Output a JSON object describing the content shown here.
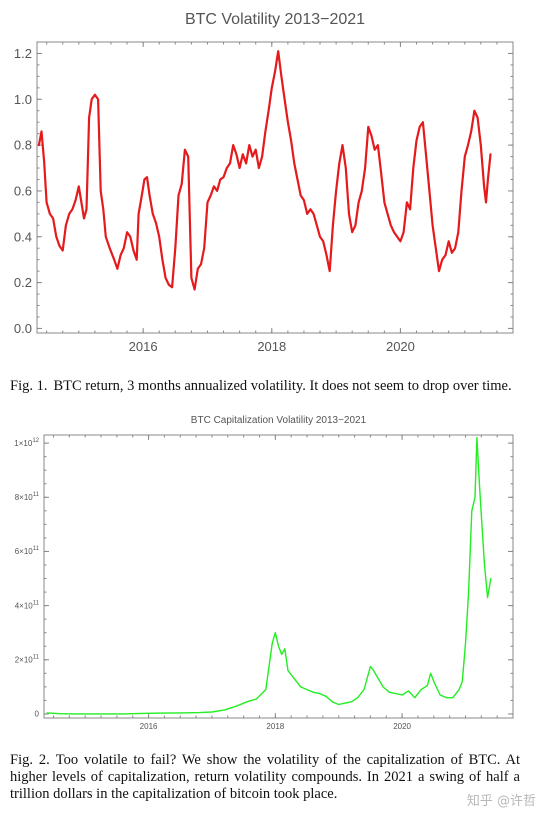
{
  "fig1": {
    "caption_label": "Fig. 1.",
    "caption_text": "BTC return, 3 months annualized volatility. It does not seem to drop over time."
  },
  "fig2": {
    "caption_label": "Fig. 2.",
    "caption_text": "Too volatile to fail? We show the volatility of the capitalization of BTC. At higher levels of capitalization, return volatility compounds. In 2021 a swing of half a trillion dollars in the capitalization of bitcoin took place."
  },
  "watermark": "知乎 @许哲",
  "colors": {
    "series1": "#e41a1c",
    "series2": "#22ee22",
    "axis": "#888888",
    "text": "#555555"
  },
  "chart_data": [
    {
      "type": "line",
      "title": "BTC Volatility 2013−2021",
      "xlabel": "",
      "ylabel": "",
      "xlim": [
        2014.35,
        2021.75
      ],
      "ylim": [
        -0.02,
        1.25
      ],
      "x_ticks": [
        2016,
        2018,
        2020
      ],
      "x_tick_labels": [
        "2016",
        "2018",
        "2020"
      ],
      "y_ticks": [
        0.0,
        0.2,
        0.4,
        0.6,
        0.8,
        1.0,
        1.2
      ],
      "y_tick_labels": [
        "0.0",
        "0.2",
        "0.4",
        "0.6",
        "0.8",
        "1.0",
        "1.2"
      ],
      "grid": false,
      "series": [
        {
          "color": "#e41a1c",
          "points": [
            [
              2014.38,
              0.8
            ],
            [
              2014.42,
              0.86
            ],
            [
              2014.46,
              0.73
            ],
            [
              2014.5,
              0.55
            ],
            [
              2014.55,
              0.5
            ],
            [
              2014.6,
              0.48
            ],
            [
              2014.65,
              0.4
            ],
            [
              2014.7,
              0.36
            ],
            [
              2014.75,
              0.34
            ],
            [
              2014.8,
              0.45
            ],
            [
              2014.85,
              0.5
            ],
            [
              2014.9,
              0.52
            ],
            [
              2014.95,
              0.56
            ],
            [
              2015.0,
              0.62
            ],
            [
              2015.04,
              0.55
            ],
            [
              2015.08,
              0.48
            ],
            [
              2015.12,
              0.52
            ],
            [
              2015.16,
              0.92
            ],
            [
              2015.2,
              1.0
            ],
            [
              2015.25,
              1.02
            ],
            [
              2015.3,
              1.0
            ],
            [
              2015.34,
              0.6
            ],
            [
              2015.38,
              0.52
            ],
            [
              2015.42,
              0.4
            ],
            [
              2015.48,
              0.35
            ],
            [
              2015.55,
              0.3
            ],
            [
              2015.6,
              0.26
            ],
            [
              2015.65,
              0.32
            ],
            [
              2015.7,
              0.35
            ],
            [
              2015.75,
              0.42
            ],
            [
              2015.8,
              0.4
            ],
            [
              2015.85,
              0.34
            ],
            [
              2015.9,
              0.3
            ],
            [
              2015.93,
              0.5
            ],
            [
              2015.98,
              0.58
            ],
            [
              2016.02,
              0.65
            ],
            [
              2016.06,
              0.66
            ],
            [
              2016.1,
              0.58
            ],
            [
              2016.15,
              0.5
            ],
            [
              2016.2,
              0.46
            ],
            [
              2016.25,
              0.4
            ],
            [
              2016.3,
              0.3
            ],
            [
              2016.35,
              0.22
            ],
            [
              2016.4,
              0.19
            ],
            [
              2016.45,
              0.18
            ],
            [
              2016.5,
              0.35
            ],
            [
              2016.55,
              0.58
            ],
            [
              2016.6,
              0.63
            ],
            [
              2016.65,
              0.78
            ],
            [
              2016.7,
              0.75
            ],
            [
              2016.75,
              0.22
            ],
            [
              2016.8,
              0.17
            ],
            [
              2016.85,
              0.26
            ],
            [
              2016.9,
              0.28
            ],
            [
              2016.95,
              0.35
            ],
            [
              2017.0,
              0.55
            ],
            [
              2017.05,
              0.58
            ],
            [
              2017.1,
              0.62
            ],
            [
              2017.15,
              0.6
            ],
            [
              2017.2,
              0.65
            ],
            [
              2017.25,
              0.66
            ],
            [
              2017.3,
              0.7
            ],
            [
              2017.35,
              0.72
            ],
            [
              2017.4,
              0.8
            ],
            [
              2017.45,
              0.76
            ],
            [
              2017.5,
              0.7
            ],
            [
              2017.55,
              0.76
            ],
            [
              2017.6,
              0.72
            ],
            [
              2017.65,
              0.8
            ],
            [
              2017.7,
              0.75
            ],
            [
              2017.75,
              0.78
            ],
            [
              2017.8,
              0.7
            ],
            [
              2017.85,
              0.75
            ],
            [
              2017.9,
              0.86
            ],
            [
              2017.95,
              0.95
            ],
            [
              2018.0,
              1.05
            ],
            [
              2018.05,
              1.12
            ],
            [
              2018.1,
              1.21
            ],
            [
              2018.15,
              1.1
            ],
            [
              2018.2,
              1.0
            ],
            [
              2018.25,
              0.9
            ],
            [
              2018.3,
              0.82
            ],
            [
              2018.35,
              0.72
            ],
            [
              2018.4,
              0.65
            ],
            [
              2018.45,
              0.58
            ],
            [
              2018.5,
              0.56
            ],
            [
              2018.55,
              0.5
            ],
            [
              2018.6,
              0.52
            ],
            [
              2018.65,
              0.5
            ],
            [
              2018.7,
              0.45
            ],
            [
              2018.75,
              0.4
            ],
            [
              2018.8,
              0.38
            ],
            [
              2018.85,
              0.32
            ],
            [
              2018.9,
              0.25
            ],
            [
              2018.95,
              0.45
            ],
            [
              2019.0,
              0.6
            ],
            [
              2019.05,
              0.72
            ],
            [
              2019.1,
              0.8
            ],
            [
              2019.15,
              0.7
            ],
            [
              2019.2,
              0.5
            ],
            [
              2019.25,
              0.42
            ],
            [
              2019.3,
              0.45
            ],
            [
              2019.35,
              0.55
            ],
            [
              2019.4,
              0.6
            ],
            [
              2019.45,
              0.7
            ],
            [
              2019.5,
              0.88
            ],
            [
              2019.55,
              0.84
            ],
            [
              2019.6,
              0.78
            ],
            [
              2019.65,
              0.8
            ],
            [
              2019.7,
              0.68
            ],
            [
              2019.75,
              0.55
            ],
            [
              2019.8,
              0.5
            ],
            [
              2019.85,
              0.45
            ],
            [
              2019.9,
              0.42
            ],
            [
              2019.95,
              0.4
            ],
            [
              2020.0,
              0.38
            ],
            [
              2020.05,
              0.42
            ],
            [
              2020.1,
              0.55
            ],
            [
              2020.15,
              0.52
            ],
            [
              2020.2,
              0.7
            ],
            [
              2020.25,
              0.82
            ],
            [
              2020.3,
              0.88
            ],
            [
              2020.35,
              0.9
            ],
            [
              2020.4,
              0.75
            ],
            [
              2020.45,
              0.6
            ],
            [
              2020.5,
              0.45
            ],
            [
              2020.55,
              0.35
            ],
            [
              2020.6,
              0.25
            ],
            [
              2020.65,
              0.3
            ],
            [
              2020.7,
              0.32
            ],
            [
              2020.75,
              0.38
            ],
            [
              2020.8,
              0.33
            ],
            [
              2020.85,
              0.35
            ],
            [
              2020.9,
              0.42
            ],
            [
              2020.95,
              0.6
            ],
            [
              2021.0,
              0.75
            ],
            [
              2021.05,
              0.8
            ],
            [
              2021.1,
              0.86
            ],
            [
              2021.15,
              0.95
            ],
            [
              2021.2,
              0.92
            ],
            [
              2021.25,
              0.8
            ],
            [
              2021.3,
              0.62
            ],
            [
              2021.33,
              0.55
            ],
            [
              2021.36,
              0.65
            ],
            [
              2021.4,
              0.76
            ]
          ]
        }
      ]
    },
    {
      "type": "line",
      "title": "BTC Capitalization Volatility 2013−2021",
      "xlabel": "",
      "ylabel": "",
      "xlim": [
        2014.35,
        2021.75
      ],
      "ylim": [
        -15000000000.0,
        1030000000000.0
      ],
      "x_ticks": [
        2016,
        2018,
        2020
      ],
      "x_tick_labels": [
        "2016",
        "2018",
        "2020"
      ],
      "y_ticks": [
        0,
        200000000000.0,
        400000000000.0,
        600000000000.0,
        800000000000.0,
        1000000000000.0
      ],
      "y_tick_labels": [
        [
          "0",
          ""
        ],
        [
          "2×10",
          "11"
        ],
        [
          "4×10",
          "11"
        ],
        [
          "6×10",
          "11"
        ],
        [
          "8×10",
          "11"
        ],
        [
          "1×10",
          "12"
        ]
      ],
      "grid": false,
      "series": [
        {
          "color": "#22ee22",
          "points": [
            [
              2014.4,
              4000000000.0
            ],
            [
              2014.6,
              1000000000.0
            ],
            [
              2014.8,
              0
            ],
            [
              2015.0,
              0
            ],
            [
              2015.3,
              0
            ],
            [
              2015.6,
              0
            ],
            [
              2015.9,
              2000000000.0
            ],
            [
              2016.2,
              3000000000.0
            ],
            [
              2016.5,
              4000000000.0
            ],
            [
              2016.8,
              5000000000.0
            ],
            [
              2017.0,
              7000000000.0
            ],
            [
              2017.2,
              15000000000.0
            ],
            [
              2017.4,
              30000000000.0
            ],
            [
              2017.55,
              45000000000.0
            ],
            [
              2017.7,
              55000000000.0
            ],
            [
              2017.85,
              90000000000.0
            ],
            [
              2017.95,
              260000000000.0
            ],
            [
              2018.0,
              300000000000.0
            ],
            [
              2018.05,
              250000000000.0
            ],
            [
              2018.1,
              220000000000.0
            ],
            [
              2018.15,
              240000000000.0
            ],
            [
              2018.2,
              160000000000.0
            ],
            [
              2018.3,
              130000000000.0
            ],
            [
              2018.4,
              100000000000.0
            ],
            [
              2018.5,
              90000000000.0
            ],
            [
              2018.6,
              80000000000.0
            ],
            [
              2018.7,
              75000000000.0
            ],
            [
              2018.8,
              65000000000.0
            ],
            [
              2018.9,
              45000000000.0
            ],
            [
              2019.0,
              35000000000.0
            ],
            [
              2019.1,
              40000000000.0
            ],
            [
              2019.2,
              45000000000.0
            ],
            [
              2019.3,
              60000000000.0
            ],
            [
              2019.4,
              90000000000.0
            ],
            [
              2019.5,
              175000000000.0
            ],
            [
              2019.55,
              160000000000.0
            ],
            [
              2019.6,
              140000000000.0
            ],
            [
              2019.7,
              100000000000.0
            ],
            [
              2019.8,
              80000000000.0
            ],
            [
              2019.9,
              75000000000.0
            ],
            [
              2020.0,
              70000000000.0
            ],
            [
              2020.1,
              85000000000.0
            ],
            [
              2020.2,
              60000000000.0
            ],
            [
              2020.3,
              90000000000.0
            ],
            [
              2020.4,
              105000000000.0
            ],
            [
              2020.45,
              150000000000.0
            ],
            [
              2020.5,
              120000000000.0
            ],
            [
              2020.6,
              70000000000.0
            ],
            [
              2020.7,
              60000000000.0
            ],
            [
              2020.8,
              60000000000.0
            ],
            [
              2020.9,
              90000000000.0
            ],
            [
              2020.95,
              120000000000.0
            ],
            [
              2021.0,
              260000000000.0
            ],
            [
              2021.05,
              450000000000.0
            ],
            [
              2021.1,
              750000000000.0
            ],
            [
              2021.15,
              800000000000.0
            ],
            [
              2021.18,
              1020000000000.0
            ],
            [
              2021.22,
              850000000000.0
            ],
            [
              2021.26,
              700000000000.0
            ],
            [
              2021.3,
              550000000000.0
            ],
            [
              2021.35,
              430000000000.0
            ],
            [
              2021.4,
              500000000000.0
            ]
          ]
        }
      ]
    }
  ]
}
